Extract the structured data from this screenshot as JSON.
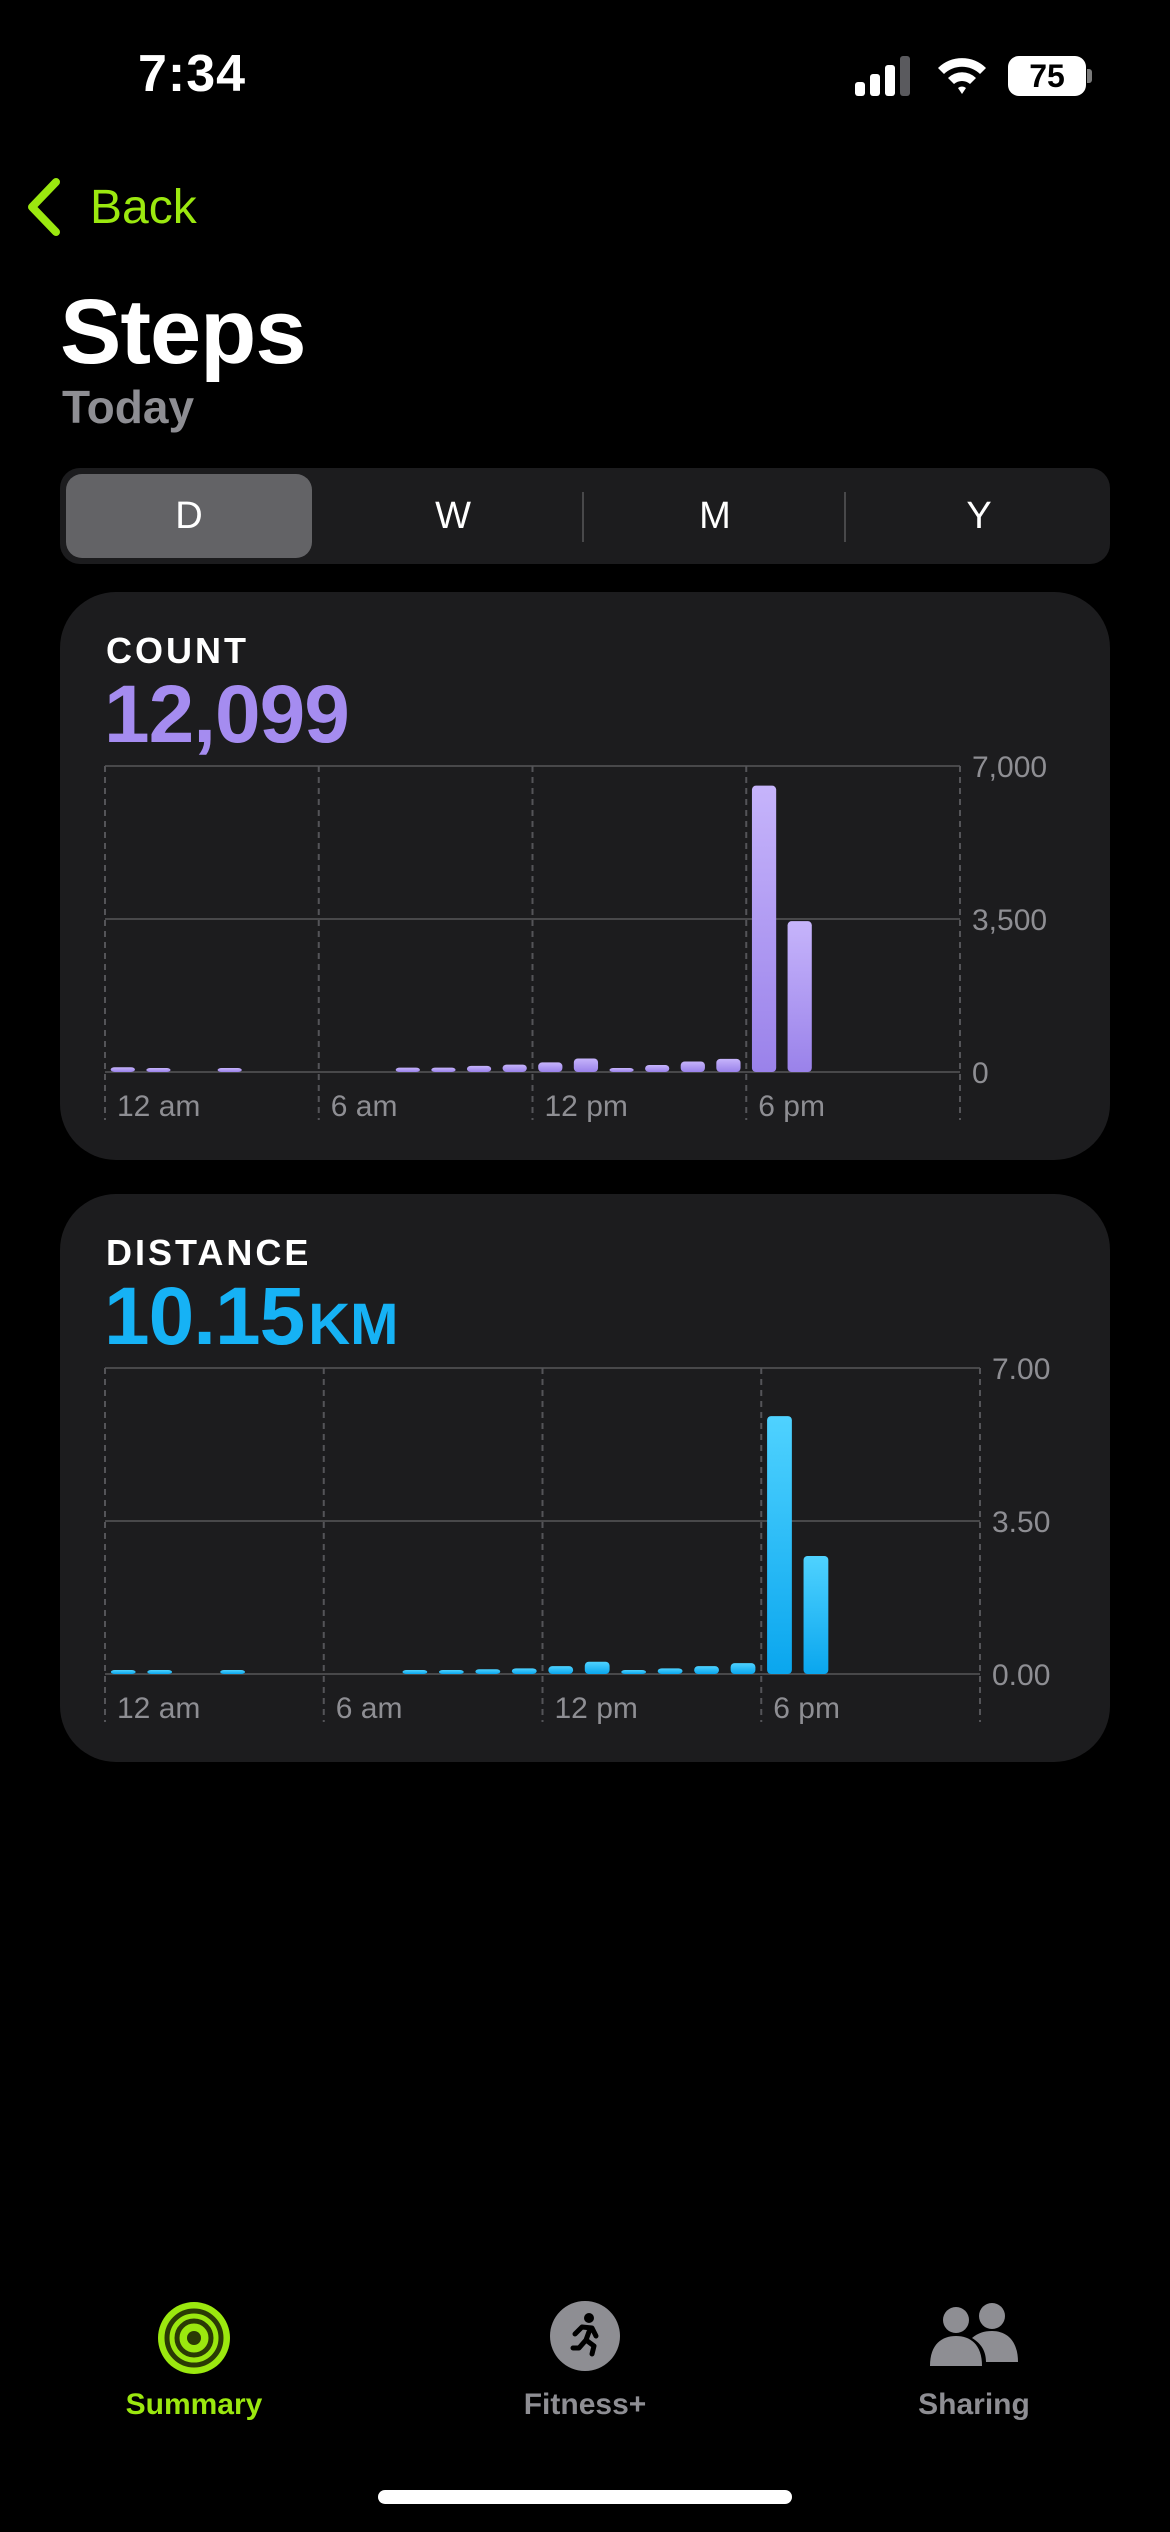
{
  "status_bar": {
    "time": "7:34",
    "battery": "75"
  },
  "nav": {
    "back_label": "Back"
  },
  "header": {
    "title": "Steps",
    "subtitle": "Today"
  },
  "segments": [
    {
      "label": "D",
      "active": true
    },
    {
      "label": "W",
      "active": false
    },
    {
      "label": "M",
      "active": false
    },
    {
      "label": "Y",
      "active": false
    }
  ],
  "count_card": {
    "label": "COUNT",
    "value": "12,099",
    "accent": "#a58cf0"
  },
  "distance_card": {
    "label": "DISTANCE",
    "value": "10.15",
    "unit": "KM",
    "accent": "#16b2f5"
  },
  "chart_data": [
    {
      "type": "bar",
      "series": [
        {
          "name": "COUNT",
          "color": "#a58cf0",
          "x": [
            0,
            1,
            3,
            8,
            9,
            10,
            11,
            12,
            13,
            14,
            15,
            16,
            17,
            18,
            19,
            20
          ],
          "values": [
            110,
            40,
            40,
            100,
            100,
            140,
            170,
            220,
            310,
            90,
            160,
            240,
            300,
            6550,
            3450,
            0
          ]
        }
      ],
      "x_ticks": [
        "12 am",
        "6 am",
        "12 pm",
        "6 pm"
      ],
      "y_ticks": [
        "7,000",
        "3,500",
        "0"
      ],
      "ylim": [
        0,
        7000
      ],
      "xlim_hours": [
        0,
        24
      ]
    },
    {
      "type": "bar",
      "series": [
        {
          "name": "DISTANCE",
          "color": "#16b2f5",
          "x": [
            0,
            1,
            3,
            8,
            9,
            10,
            11,
            12,
            13,
            14,
            15,
            16,
            17,
            18,
            19
          ],
          "values": [
            0.08,
            0.04,
            0.04,
            0.09,
            0.09,
            0.11,
            0.13,
            0.18,
            0.28,
            0.06,
            0.13,
            0.18,
            0.25,
            5.9,
            2.7
          ]
        }
      ],
      "x_ticks": [
        "12 am",
        "6 am",
        "12 pm",
        "6 pm"
      ],
      "y_ticks": [
        "7.00",
        "3.50",
        "0.00"
      ],
      "ylim": [
        0,
        7
      ],
      "xlim_hours": [
        0,
        24
      ]
    }
  ],
  "tabbar": {
    "items": [
      {
        "label": "Summary",
        "active": true,
        "icon": "activity-rings-icon"
      },
      {
        "label": "Fitness+",
        "active": false,
        "icon": "running-figure-icon"
      },
      {
        "label": "Sharing",
        "active": false,
        "icon": "people-icon"
      }
    ],
    "active_color": "#9be80f",
    "inactive_color": "#8e8e93"
  }
}
